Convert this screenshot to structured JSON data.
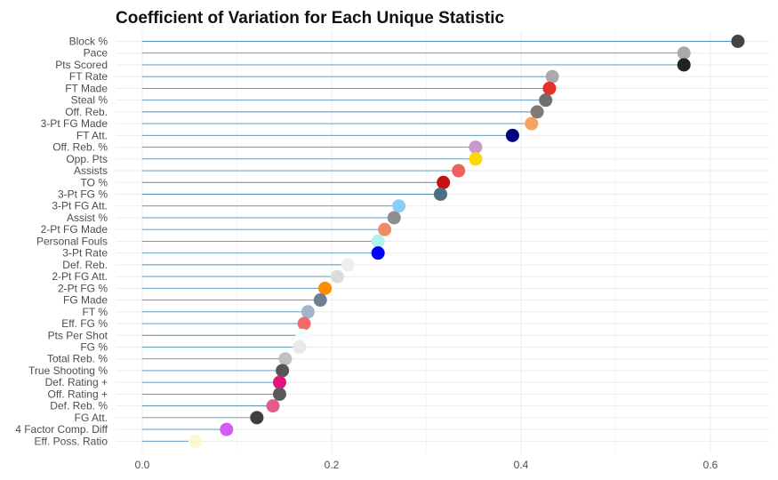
{
  "chart_data": {
    "type": "lollipop",
    "title": "Coefficient of Variation for Each Unique Statistic",
    "xlabel": "",
    "ylabel": "",
    "xlim": [
      0,
      0.66
    ],
    "x_ticks": [
      0.0,
      0.2,
      0.4,
      0.6
    ],
    "x_tick_labels": [
      "0.0",
      "0.2",
      "0.4",
      "0.6"
    ],
    "x_minor_ticks": [
      0.1,
      0.3,
      0.5
    ],
    "segment_color": "#4f93ba",
    "grid": true,
    "legend": "none",
    "points": [
      {
        "label": "Block %",
        "value": 0.629,
        "color": "#444444"
      },
      {
        "label": "Pace",
        "value": 0.572,
        "color": "#a9a9a9"
      },
      {
        "label": "Pts Scored",
        "value": 0.572,
        "color": "#222222"
      },
      {
        "label": "FT Rate",
        "value": 0.433,
        "color": "#a9a9a9"
      },
      {
        "label": "FT Made",
        "value": 0.43,
        "color": "#e8302a"
      },
      {
        "label": "Steal %",
        "value": 0.426,
        "color": "#6e6e6e"
      },
      {
        "label": "Off. Reb.",
        "value": 0.417,
        "color": "#7f7b74"
      },
      {
        "label": "3-Pt FG Made",
        "value": 0.411,
        "color": "#f4a460"
      },
      {
        "label": "FT Att.",
        "value": 0.391,
        "color": "#000080"
      },
      {
        "label": "Off. Reb. %",
        "value": 0.352,
        "color": "#c998cf"
      },
      {
        "label": "Opp. Pts",
        "value": 0.352,
        "color": "#ffd700"
      },
      {
        "label": "Assists",
        "value": 0.334,
        "color": "#f0625e"
      },
      {
        "label": "TO %",
        "value": 0.318,
        "color": "#c41212"
      },
      {
        "label": "3-Pt FG %",
        "value": 0.315,
        "color": "#4a6e86"
      },
      {
        "label": "3-Pt FG Att.",
        "value": 0.271,
        "color": "#87cefa"
      },
      {
        "label": "Assist %",
        "value": 0.266,
        "color": "#8e8e8e"
      },
      {
        "label": "2-Pt FG Made",
        "value": 0.256,
        "color": "#ee8c68"
      },
      {
        "label": "Personal Fouls",
        "value": 0.249,
        "color": "#b3f0f0"
      },
      {
        "label": "3-Pt Rate",
        "value": 0.249,
        "color": "#0000ff"
      },
      {
        "label": "Def. Reb.",
        "value": 0.217,
        "color": "#eeeeee"
      },
      {
        "label": "2-Pt FG Att.",
        "value": 0.206,
        "color": "#dcdcdc"
      },
      {
        "label": "2-Pt FG %",
        "value": 0.193,
        "color": "#ff8c00"
      },
      {
        "label": "FG Made",
        "value": 0.188,
        "color": "#6e7f92"
      },
      {
        "label": "FT %",
        "value": 0.175,
        "color": "#a3b5cb"
      },
      {
        "label": "Eff. FG %",
        "value": 0.171,
        "color": "#f46a6a"
      },
      {
        "label": "Pts Per Shot",
        "value": 0.169,
        "color": "#f6fbfd"
      },
      {
        "label": "FG %",
        "value": 0.166,
        "color": "#e8e8e8"
      },
      {
        "label": "Total Reb. %",
        "value": 0.151,
        "color": "#c0c0c0"
      },
      {
        "label": "True Shooting %",
        "value": 0.148,
        "color": "#555555"
      },
      {
        "label": "Def. Rating +",
        "value": 0.145,
        "color": "#e4127e"
      },
      {
        "label": "Off. Rating +",
        "value": 0.145,
        "color": "#5a5a5a"
      },
      {
        "label": "Def. Reb. %",
        "value": 0.138,
        "color": "#e05e88"
      },
      {
        "label": "FG Att.",
        "value": 0.121,
        "color": "#3f3f3f"
      },
      {
        "label": "4 Factor Comp. Diff",
        "value": 0.089,
        "color": "#d35cf5"
      },
      {
        "label": "Eff. Poss. Ratio",
        "value": 0.056,
        "color": "#fbf8cf"
      }
    ]
  }
}
